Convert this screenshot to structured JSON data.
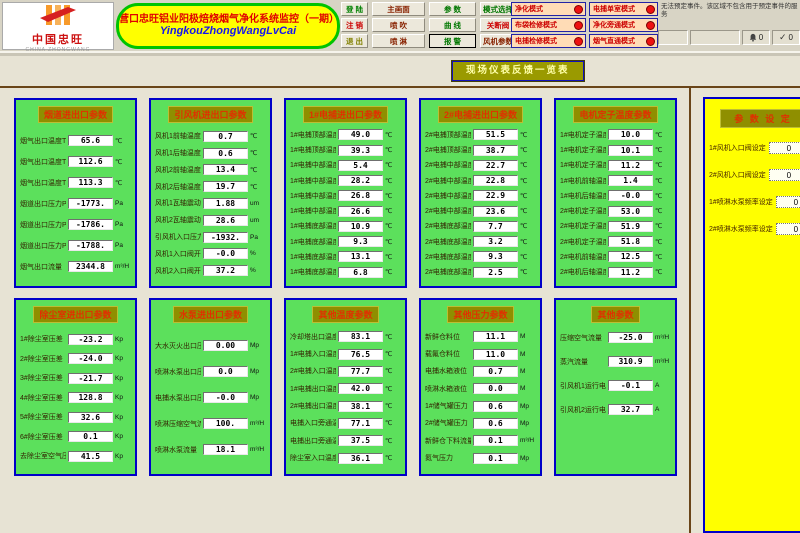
{
  "logo": {
    "brand": "中国忠旺",
    "sub": "CHINA ZHONGWANG"
  },
  "title": {
    "line1": "营口忠旺铝业阳极焙烧烟气净化系统监控（一期）",
    "line2": "YingkouZhongWangLvCai"
  },
  "window": {
    "system_message": "无法预定事件。该区域不包含用于预定事件的服务",
    "alarm_count": "0",
    "check_count": "0"
  },
  "banner": "现场仪表反馈一览表",
  "colors": {
    "panel_green": "#5ce05c",
    "panel_border_blue": "#0000c8",
    "title_olive": "#8f8f00",
    "title_red": "#e03000",
    "settings_yellow": "#ffff00",
    "led_red": "#ee1111",
    "mode_peach": "#ffdcb6"
  },
  "nav_columns": [
    {
      "items": [
        {
          "id": "login",
          "label": "登 陆",
          "color": "#008000"
        },
        {
          "id": "logout",
          "label": "注 销",
          "color": "#cc0000"
        },
        {
          "id": "exit",
          "label": "退 出",
          "color": "#808000"
        }
      ]
    },
    {
      "items": [
        {
          "id": "main-screen",
          "label": "主画面",
          "color": "#882200"
        },
        {
          "id": "pulse-jet",
          "label": "喷 吹",
          "color": "#882200"
        },
        {
          "id": "spray",
          "label": "喷 淋",
          "color": "#882200"
        }
      ]
    },
    {
      "items": [
        {
          "id": "params",
          "label": "参 数",
          "color": "#007700"
        },
        {
          "id": "curve",
          "label": "曲 线",
          "color": "#007700"
        },
        {
          "id": "alarm",
          "label": "报 警",
          "color": "#007700",
          "selected": true
        }
      ]
    },
    {
      "items": [
        {
          "id": "mode-select",
          "label": "模式选择",
          "color": "#007700"
        },
        {
          "id": "shutoff-valve",
          "label": "关断阀",
          "color": "#cc0000"
        },
        {
          "id": "fan-params",
          "label": "风机参数",
          "color": "#882200"
        }
      ]
    }
  ],
  "mode_indicators": {
    "col1": [
      {
        "id": "purify-mode",
        "label": "净化模式"
      },
      {
        "id": "bag-maintenance-mode",
        "label": "布袋检修模式"
      },
      {
        "id": "ep-maintenance-mode",
        "label": "电捕检修模式"
      }
    ],
    "col2": [
      {
        "id": "ep-single-chamber-mode",
        "label": "电捕单室模式"
      },
      {
        "id": "purify-bypass-mode",
        "label": "净化旁通模式"
      },
      {
        "id": "gas-direct-mode",
        "label": "烟气直通模式"
      }
    ]
  },
  "top_panels": [
    {
      "id": "flue-duct",
      "title": "烟道进出口参数",
      "rows": [
        {
          "label": "烟气出口温度T1",
          "value": "65.6",
          "unit": "℃"
        },
        {
          "label": "烟气出口温度T2",
          "value": "112.6",
          "unit": "℃"
        },
        {
          "label": "烟气出口温度T3",
          "value": "113.3",
          "unit": "℃"
        },
        {
          "label": "烟道出口压力P1",
          "value": "-1773.",
          "unit": "Pa"
        },
        {
          "label": "烟道出口压力P2",
          "value": "-1786.",
          "unit": "Pa"
        },
        {
          "label": "烟道出口压力P3",
          "value": "-1788.",
          "unit": "Pa"
        },
        {
          "label": "烟气出口流量",
          "value": "2344.8",
          "unit": "m³/H"
        }
      ]
    },
    {
      "id": "id-fan",
      "title": "引风机进出口参数",
      "rows": [
        {
          "label": "风机1前轴温度T33",
          "value": "0.7",
          "unit": "℃"
        },
        {
          "label": "风机1后轴温度T34",
          "value": "0.6",
          "unit": "℃"
        },
        {
          "label": "风机2前轴温度T31",
          "value": "13.4",
          "unit": "℃"
        },
        {
          "label": "风机2后轴温度T32",
          "value": "19.7",
          "unit": "℃"
        },
        {
          "label": "风机1瓦轴震动",
          "value": "1.88",
          "unit": "um"
        },
        {
          "label": "风机2瓦轴震动",
          "value": "28.6",
          "unit": "um"
        },
        {
          "label": "引风机入口压力",
          "value": "-1932.",
          "unit": "Pa"
        },
        {
          "label": "风机1入口阀开度",
          "value": "-0.0",
          "unit": "%"
        },
        {
          "label": "风机2入口阀开度",
          "value": "37.2",
          "unit": "%"
        }
      ]
    },
    {
      "id": "ep1",
      "title": "1#电捕进出口参数",
      "rows": [
        {
          "label": "1#电捕顶部温度T7",
          "value": "49.0",
          "unit": "℃"
        },
        {
          "label": "1#电捕顶部温度T8",
          "value": "39.3",
          "unit": "℃"
        },
        {
          "label": "1#电捕中部温度T15",
          "value": "5.4",
          "unit": "℃"
        },
        {
          "label": "1#电捕中部温度T16",
          "value": "28.2",
          "unit": "℃"
        },
        {
          "label": "1#电捕中部温度T17",
          "value": "26.8",
          "unit": "℃"
        },
        {
          "label": "1#电捕中部温度T18",
          "value": "26.6",
          "unit": "℃"
        },
        {
          "label": "1#电捕底部温度T19",
          "value": "10.9",
          "unit": "℃"
        },
        {
          "label": "1#电捕底部温度T20",
          "value": "9.3",
          "unit": "℃"
        },
        {
          "label": "1#电捕底部温度T25",
          "value": "13.1",
          "unit": "℃"
        },
        {
          "label": "1#电捕底部温度T26",
          "value": "6.8",
          "unit": "℃"
        }
      ]
    },
    {
      "id": "ep2",
      "title": "2#电捕进出口参数",
      "rows": [
        {
          "label": "2#电捕顶部温度T9",
          "value": "51.5",
          "unit": "℃"
        },
        {
          "label": "2#电捕顶部温度T10",
          "value": "38.7",
          "unit": "℃"
        },
        {
          "label": "2#电捕中部温度T11",
          "value": "22.7",
          "unit": "℃"
        },
        {
          "label": "2#电捕中部温度T12",
          "value": "22.8",
          "unit": "℃"
        },
        {
          "label": "2#电捕中部温度T13",
          "value": "22.9",
          "unit": "℃"
        },
        {
          "label": "2#电捕中部温度T14",
          "value": "23.6",
          "unit": "℃"
        },
        {
          "label": "2#电捕底部温度T21",
          "value": "7.7",
          "unit": "℃"
        },
        {
          "label": "2#电捕底部温度T22",
          "value": "3.2",
          "unit": "℃"
        },
        {
          "label": "2#电捕底部温度T23",
          "value": "9.3",
          "unit": "℃"
        },
        {
          "label": "2#电捕底部温度T24",
          "value": "2.5",
          "unit": "℃"
        }
      ]
    },
    {
      "id": "motor-stator",
      "title": "电机定子温度参数",
      "rows": [
        {
          "label": "1#电机定子温度1",
          "value": "10.0",
          "unit": "℃"
        },
        {
          "label": "1#电机定子温度2",
          "value": "10.1",
          "unit": "℃"
        },
        {
          "label": "1#电机定子温度3",
          "value": "11.2",
          "unit": "℃"
        },
        {
          "label": "1#电机前轴温度",
          "value": "1.4",
          "unit": "℃"
        },
        {
          "label": "1#电机后轴温度",
          "value": "-0.0",
          "unit": "℃"
        },
        {
          "label": "2#电机定子温度1",
          "value": "53.0",
          "unit": "℃"
        },
        {
          "label": "2#电机定子温度2",
          "value": "51.9",
          "unit": "℃"
        },
        {
          "label": "2#电机定子温度3",
          "value": "51.8",
          "unit": "℃"
        },
        {
          "label": "2#电机前轴温度",
          "value": "12.5",
          "unit": "℃"
        },
        {
          "label": "2#电机后轴温度",
          "value": "11.2",
          "unit": "℃"
        }
      ]
    }
  ],
  "bottom_panels": [
    {
      "id": "dust-chamber",
      "title": "除尘室进出口参数",
      "rows": [
        {
          "label": "1#除尘室压差",
          "value": "-23.2",
          "unit": "Kp"
        },
        {
          "label": "2#除尘室压差",
          "value": "-24.0",
          "unit": "Kp"
        },
        {
          "label": "3#除尘室压差",
          "value": "-21.7",
          "unit": "Kp"
        },
        {
          "label": "4#除尘室压差",
          "value": "128.8",
          "unit": "Kp"
        },
        {
          "label": "5#除尘室压差",
          "value": "32.6",
          "unit": "Kp"
        },
        {
          "label": "6#除尘室压差",
          "value": "0.1",
          "unit": "Kp"
        },
        {
          "label": "去除尘室空气压力",
          "value": "41.5",
          "unit": "Kp"
        }
      ]
    },
    {
      "id": "water-pump",
      "title": "水泵进出口参数",
      "rows": [
        {
          "label": "大水灭火出口压力",
          "value": "0.00",
          "unit": "Mp"
        },
        {
          "label": "喷淋水泵出口压力",
          "value": "0.0",
          "unit": "Mp"
        },
        {
          "label": "电捕水泵出口压力",
          "value": "-0.0",
          "unit": "Mp"
        },
        {
          "label": "喷淋压缩空气流量",
          "value": "100.",
          "unit": "m³/H"
        },
        {
          "label": "喷淋水泵流量",
          "value": "18.1",
          "unit": "m³/H"
        }
      ]
    },
    {
      "id": "other-temp",
      "title": "其他温度参数",
      "rows": [
        {
          "label": "冷却塔出口温度T4",
          "value": "83.1",
          "unit": "℃"
        },
        {
          "label": "1#电捕入口温度T5",
          "value": "76.5",
          "unit": "℃"
        },
        {
          "label": "2#电捕入口温度T6",
          "value": "77.7",
          "unit": "℃"
        },
        {
          "label": "1#电捕出口温度T28",
          "value": "42.0",
          "unit": "℃"
        },
        {
          "label": "2#电捕出口温度T29",
          "value": "38.1",
          "unit": "℃"
        },
        {
          "label": "电捕入口旁通温度T36",
          "value": "77.1",
          "unit": "℃"
        },
        {
          "label": "电捕出口旁通温度T27",
          "value": "37.5",
          "unit": "℃"
        },
        {
          "label": "除尘室入口温度T30",
          "value": "36.1",
          "unit": "℃"
        }
      ]
    },
    {
      "id": "other-pressure",
      "title": "其他压力参数",
      "rows": [
        {
          "label": "新鲜仓料位",
          "value": "11.1",
          "unit": "M"
        },
        {
          "label": "载氟仓料位",
          "value": "11.0",
          "unit": "M"
        },
        {
          "label": "电捕水箱液位",
          "value": "0.7",
          "unit": "M"
        },
        {
          "label": "喷淋水箱液位",
          "value": "0.0",
          "unit": "M"
        },
        {
          "label": "1#储气罐压力",
          "value": "0.6",
          "unit": "Mp"
        },
        {
          "label": "2#储气罐压力",
          "value": "0.6",
          "unit": "Mp"
        },
        {
          "label": "新鲜仓下料流量",
          "value": "0.1",
          "unit": "m³/H"
        },
        {
          "label": "氮气压力",
          "value": "0.1",
          "unit": "Mp"
        }
      ]
    },
    {
      "id": "other",
      "title": "其他参数",
      "top_align": true,
      "rows": [
        {
          "label": "压缩空气流量",
          "value": "-25.0",
          "unit": "m³/H"
        },
        {
          "label": "蒸汽流量",
          "value": "310.9",
          "unit": "m³/H"
        },
        {
          "label": "引风机1运行电流",
          "value": "-0.1",
          "unit": "A"
        },
        {
          "label": "引风机2运行电流",
          "value": "32.7",
          "unit": "A"
        }
      ]
    }
  ],
  "settings": {
    "title": "参 数 设 定",
    "rows": [
      {
        "label": "1#风机入口阀设定",
        "value": "0"
      },
      {
        "label": "2#风机入口阀设定",
        "value": "0"
      },
      {
        "label": "1#喷淋水泵频率设定",
        "value": "0"
      },
      {
        "label": "2#喷淋水泵频率设定",
        "value": "0"
      }
    ]
  }
}
